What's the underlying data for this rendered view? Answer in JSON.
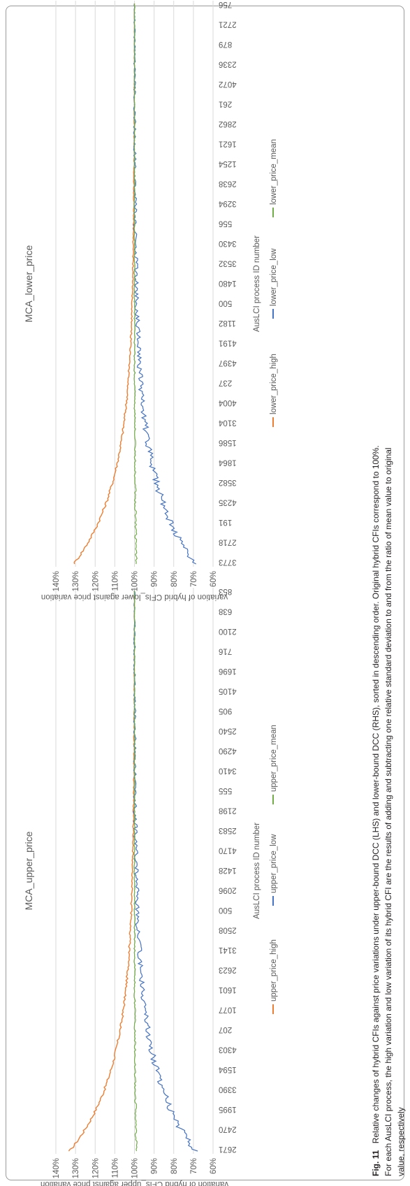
{
  "chart_data": [
    {
      "type": "line",
      "title": "MCA_upper_price",
      "xlabel": "AusLCI process ID number",
      "ylabel": "variation of hybrid CFIs_upper against price variation",
      "x_tick_labels": [
        "2671",
        "2470",
        "1995",
        "3390",
        "1594",
        "4303",
        "207",
        "1077",
        "1601",
        "2623",
        "3141",
        "2508",
        "500",
        "2096",
        "1428",
        "4170",
        "2583",
        "2198",
        "555",
        "3410",
        "4290",
        "2540",
        "905",
        "4105",
        "1696",
        "716",
        "2100",
        "638",
        "853"
      ],
      "y_tick_labels": [
        "60%",
        "70%",
        "80%",
        "90%",
        "100%",
        "110%",
        "120%",
        "130%",
        "140%"
      ],
      "ylim": [
        0.6,
        1.4
      ],
      "grid": true,
      "legend_position": "bottom",
      "series": [
        {
          "name": "upper_price_high",
          "color": "#ed7d31",
          "start": 1.33,
          "end": 1.0,
          "decay": 7,
          "noise": 0.006
        },
        {
          "name": "upper_price_low",
          "color": "#4472c4",
          "start": 0.69,
          "end": 1.0,
          "decay": 7,
          "noise": 0.018
        },
        {
          "name": "upper_price_mean",
          "color": "#70ad47",
          "start": 0.99,
          "end": 1.0,
          "decay": 7,
          "noise": 0.005
        }
      ]
    },
    {
      "type": "line",
      "title": "MCA_lower_price",
      "xlabel": "AusLCI process ID number",
      "ylabel": "variation of hybrid CFIs_lower against price variation",
      "x_tick_labels": [
        "3773",
        "2718",
        "191",
        "4235",
        "3582",
        "1864",
        "1586",
        "3104",
        "4004",
        "237",
        "4397",
        "4191",
        "1182",
        "500",
        "1480",
        "3532",
        "3430",
        "556",
        "3294",
        "2638",
        "1254",
        "1621",
        "2862",
        "261",
        "4072",
        "2336",
        "879",
        "2721",
        "756"
      ],
      "y_tick_labels": [
        "60%",
        "70%",
        "80%",
        "90%",
        "100%",
        "110%",
        "120%",
        "130%",
        "140%"
      ],
      "ylim": [
        0.6,
        1.4
      ],
      "grid": true,
      "legend_position": "bottom",
      "series": [
        {
          "name": "lower_price_high",
          "color": "#ed7d31",
          "start": 1.31,
          "end": 1.0,
          "decay": 7,
          "noise": 0.006
        },
        {
          "name": "lower_price_low",
          "color": "#4472c4",
          "start": 0.69,
          "end": 1.0,
          "decay": 7,
          "noise": 0.018
        },
        {
          "name": "lower_price_mean",
          "color": "#70ad47",
          "start": 0.99,
          "end": 1.0,
          "decay": 7,
          "noise": 0.005
        }
      ]
    }
  ],
  "caption": {
    "label": "Fig. 11",
    "line1": "Relative changes of hybrid CFIs against price variations under upper-bound DCC (LHS) and lower-bound DCC (RHS), sorted in descending order. Original hybrid CFIs correspond to 100%.",
    "line2": "For each AusLCI process, the high variation and low variation of its hybrid CFI are the results of adding and subtracting one relative standard deviation to and from the ratio of mean value to original",
    "line3": "value, respectively"
  }
}
